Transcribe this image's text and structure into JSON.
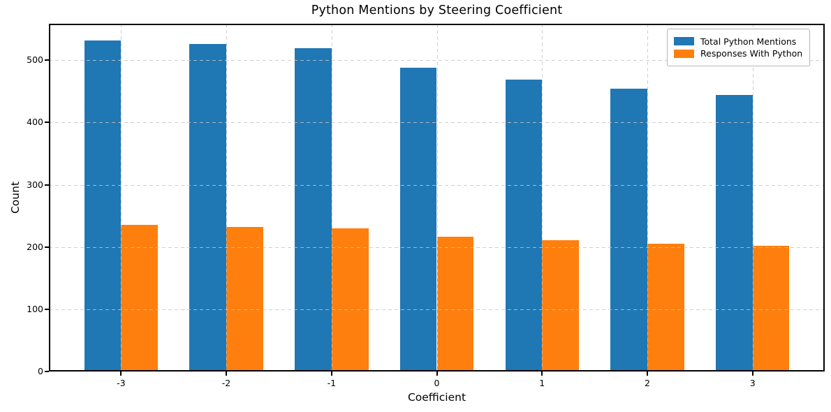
{
  "chart_data": {
    "type": "bar",
    "title": "Python Mentions by Steering Coefficient",
    "xlabel": "Coefficient",
    "ylabel": "Count",
    "categories": [
      "-3",
      "-2",
      "-1",
      "0",
      "1",
      "2",
      "3"
    ],
    "category_positions": [
      -3,
      -2,
      -1,
      0,
      1,
      2,
      3
    ],
    "series": [
      {
        "name": "Total Python Mentions",
        "color": "#1f77b4",
        "values": [
          532,
          526,
          519,
          488,
          469,
          454,
          444
        ]
      },
      {
        "name": "Responses With Python",
        "color": "#ff7f0e",
        "values": [
          236,
          232,
          230,
          217,
          211,
          205,
          202
        ]
      }
    ],
    "bar_width": 0.35,
    "series_offsets": [
      -0.175,
      0.175
    ],
    "xlim": [
      -3.685,
      3.685
    ],
    "ylim": [
      0,
      558.6
    ],
    "yticks": [
      0,
      100,
      200,
      300,
      400,
      500
    ],
    "grid": true,
    "grid_style": "dashed",
    "grid_color": "#c6c6c6",
    "axis_color": "#000000",
    "background_color": "#ffffff",
    "legend_position": "upper right"
  }
}
